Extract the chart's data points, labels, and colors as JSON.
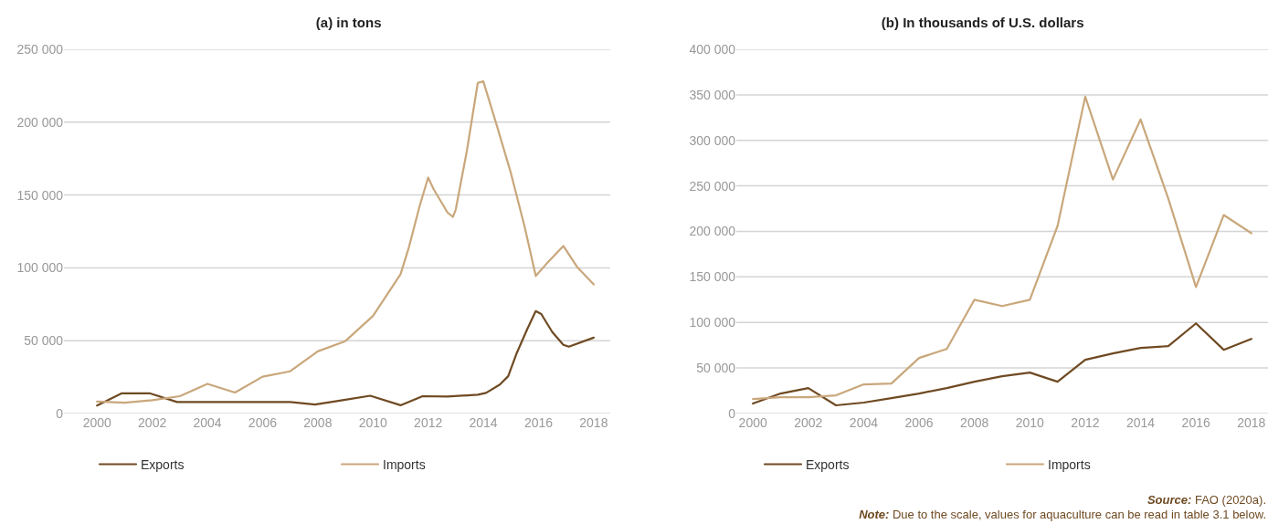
{
  "chart_data": [
    {
      "type": "line",
      "title": "(a) in tons",
      "xlim": [
        1998.8,
        2018.6
      ],
      "xticks": [
        2000,
        2002,
        2004,
        2006,
        2008,
        2010,
        2012,
        2014,
        2016,
        2018
      ],
      "ylim": [
        0,
        250000
      ],
      "yticks": [
        {
          "value": 0,
          "label": "0"
        },
        {
          "value": 50000,
          "label": "50 000"
        },
        {
          "value": 100000,
          "label": "100 000"
        },
        {
          "value": 150000,
          "label": "150 000"
        },
        {
          "value": 200000,
          "label": "200 000"
        },
        {
          "value": 250000,
          "label": "250 000"
        }
      ],
      "grid": "y",
      "legend": "bottom",
      "marker": "none",
      "series": [
        {
          "name": "Exports",
          "color": "#6f4a22",
          "x": [
            2000,
            2000.9,
            2001.9,
            2002.9,
            2007,
            2007.9,
            2008.9,
            2009.9,
            2011,
            2011.8,
            2012.7,
            2013.8,
            2014.1,
            2014.6,
            2014.9,
            2015.2,
            2015.6,
            2015.9,
            2016.1,
            2016.5,
            2016.9,
            2017.1,
            2018
          ],
          "values": [
            5500,
            13900,
            13900,
            7900,
            7900,
            6200,
            9200,
            12200,
            5700,
            11900,
            11700,
            12900,
            14200,
            19900,
            25600,
            41000,
            58300,
            70300,
            68300,
            55900,
            47200,
            45900,
            52100
          ]
        },
        {
          "name": "Imports",
          "color": "#c9a77b",
          "x": [
            2000,
            2001,
            2002,
            2003,
            2004,
            2004.5,
            2005,
            2006,
            2007,
            2008,
            2009,
            2010,
            2011,
            2011.3,
            2011.7,
            2012,
            2012.2,
            2012.7,
            2012.9,
            2013,
            2013.4,
            2013.8,
            2014,
            2014.5,
            2015,
            2015.5,
            2015.9,
            2016.3,
            2016.9,
            2017.4,
            2018
          ],
          "values": [
            8200,
            7400,
            9200,
            11900,
            20400,
            17400,
            14400,
            25300,
            29000,
            42700,
            49700,
            67000,
            95600,
            114000,
            143000,
            162000,
            154000,
            138000,
            135000,
            140000,
            180000,
            227000,
            228000,
            197000,
            165000,
            128000,
            94400,
            103000,
            115000,
            100600,
            88600
          ]
        }
      ]
    },
    {
      "type": "line",
      "title": "(b) In thousands of U.S. dollars",
      "xlim": [
        1999.4,
        2018.6
      ],
      "xticks": [
        2000,
        2002,
        2004,
        2006,
        2008,
        2010,
        2012,
        2014,
        2016,
        2018
      ],
      "ylim": [
        0,
        400000
      ],
      "yticks": [
        {
          "value": 0,
          "label": "0"
        },
        {
          "value": 50000,
          "label": "50 000"
        },
        {
          "value": 100000,
          "label": "100 000"
        },
        {
          "value": 150000,
          "label": "150 000"
        },
        {
          "value": 200000,
          "label": "200 000"
        },
        {
          "value": 250000,
          "label": "250 000"
        },
        {
          "value": 300000,
          "label": "300 000"
        },
        {
          "value": 350000,
          "label": "350 000"
        },
        {
          "value": 400000,
          "label": "400 000"
        }
      ],
      "grid": "y",
      "legend": "bottom",
      "marker": "none",
      "x": [
        2000,
        2001,
        2002,
        2003,
        2004,
        2005,
        2006,
        2007,
        2008,
        2009,
        2010,
        2011,
        2012,
        2013,
        2014,
        2015,
        2016,
        2017,
        2018
      ],
      "series": [
        {
          "name": "Exports",
          "color": "#6f4a22",
          "values": [
            11000,
            22000,
            28000,
            9000,
            12000,
            17000,
            22000,
            28000,
            35000,
            41000,
            45000,
            35000,
            59000,
            66000,
            72000,
            74000,
            99000,
            70000,
            82000
          ]
        },
        {
          "name": "Imports",
          "color": "#c9a77b",
          "values": [
            16000,
            18000,
            18000,
            20000,
            32000,
            33000,
            61000,
            71000,
            125000,
            118000,
            125000,
            206000,
            348000,
            257000,
            323000,
            236000,
            139000,
            218000,
            198000
          ]
        }
      ],
      "annotations": [
        "Source: FAO (2020a).",
        "Note: Due to the scale, values for aquaculture can be read in table 3.1 below."
      ]
    }
  ]
}
